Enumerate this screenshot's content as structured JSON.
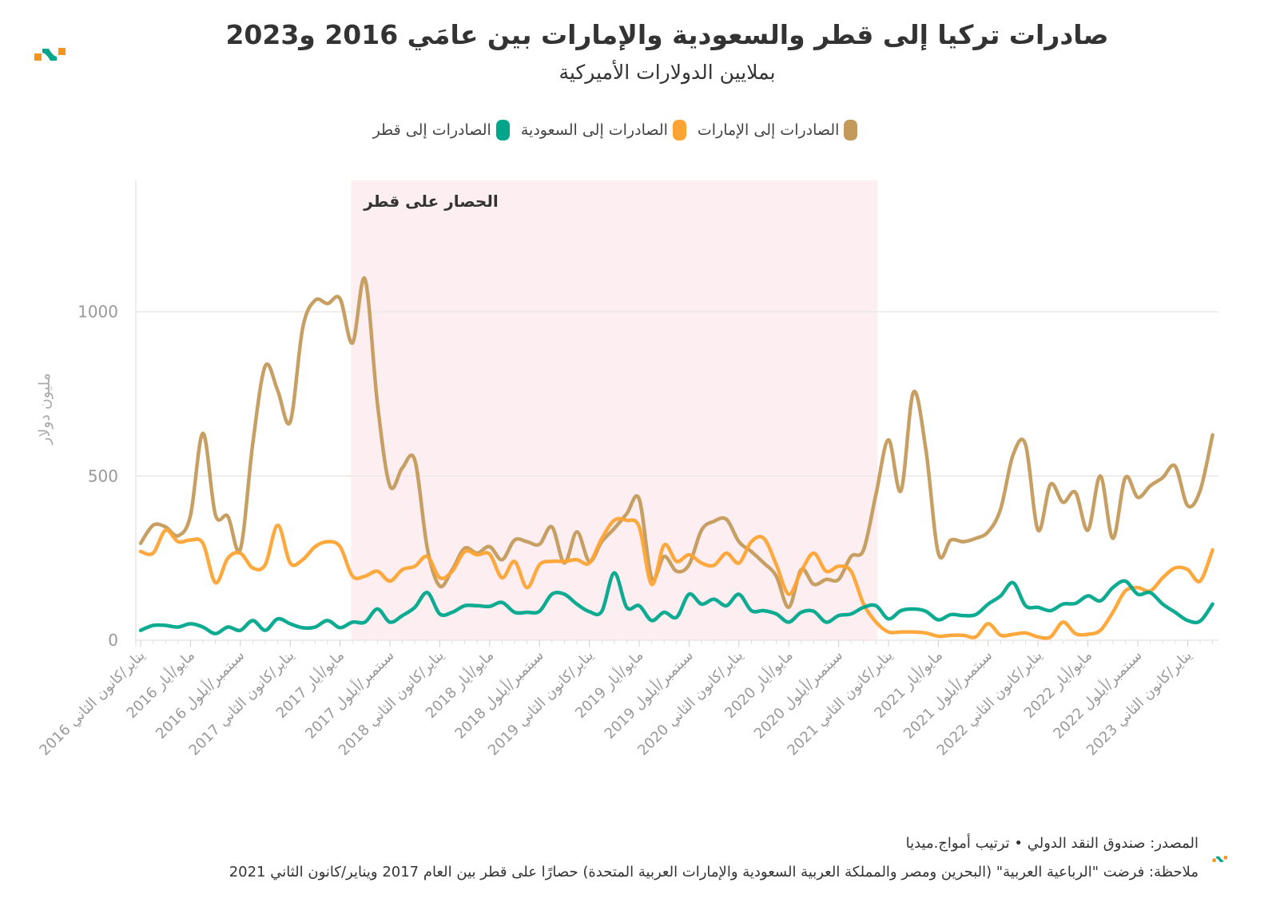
{
  "header": {
    "title": "صادرات تركيا إلى قطر والسعودية والإمارات بين عامَي 2016 و2023",
    "subtitle": "بملايين الدولارات الأميركية"
  },
  "footer": {
    "source": "المصدر: صندوق النقد الدولي • ترتيب أمواج.ميديا",
    "note": "ملاحظة: فرضت \"الرباعية العربية\" (البحرين ومصر والمملكة العربية السعودية والإمارات العربية المتحدة) حصارًا على قطر بين العام 2017 ويناير/كانون الثاني 2021"
  },
  "chart_data": {
    "type": "line",
    "title": "صادرات تركيا إلى قطر والسعودية والإمارات بين عامَي 2016 و2023",
    "subtitle": "بملايين الدولارات الأميركية",
    "xlabel": "",
    "ylabel": "مليون دولار",
    "ylim": [
      0,
      1400
    ],
    "yticks": [
      0,
      500,
      1000
    ],
    "grid": true,
    "legend_position": "top-center",
    "x_start": "2016-01",
    "x_frequency": "monthly",
    "x_tick_every": 4,
    "x_tick_labels": [
      "يناير/كانون الثاني 2016",
      "مايو/أيار 2016",
      "سبتمبر/أيلول 2016",
      "يناير/كانون الثاني 2017",
      "مايو/أيار 2017",
      "سبتمبر/أيلول 2017",
      "يناير/كانون الثاني 2018",
      "مايو/أيار 2018",
      "سبتمبر/أيلول 2018",
      "يناير/كانون الثاني 2019",
      "مايو/أيار 2019",
      "سبتمبر/أيلول 2019",
      "يناير/كانون الثاني 2020",
      "مايو/أيار 2020",
      "سبتمبر/أيلول 2020",
      "يناير/كانون الثاني 2021",
      "مايو/أيار 2021",
      "سبتمبر/أيلول 2021",
      "يناير/كانون الثاني 2022",
      "مايو/أيار 2022",
      "سبتمبر/أيلول 2022",
      "يناير/كانون الثاني 2023"
    ],
    "annotation": {
      "label": "الحصار على قطر",
      "start_index": 17,
      "end_index": 59,
      "color": "#fdeef2"
    },
    "series": [
      {
        "name": "الصادرات إلى الإمارات",
        "color": "#c49a5a",
        "values": [
          295,
          350,
          345,
          318,
          380,
          630,
          382,
          377,
          277,
          600,
          835,
          760,
          665,
          950,
          1035,
          1025,
          1040,
          905,
          1100,
          720,
          470,
          525,
          548,
          280,
          165,
          215,
          280,
          265,
          285,
          245,
          305,
          300,
          292,
          345,
          235,
          330,
          240,
          300,
          340,
          385,
          430,
          190,
          255,
          210,
          230,
          335,
          362,
          368,
          300,
          270,
          235,
          195,
          100,
          215,
          170,
          185,
          185,
          255,
          275,
          445,
          610,
          455,
          755,
          580,
          265,
          305,
          300,
          310,
          330,
          400,
          565,
          595,
          335,
          475,
          420,
          450,
          335,
          500,
          310,
          495,
          435,
          470,
          495,
          530,
          410,
          455,
          625
        ]
      },
      {
        "name": "الصادرات إلى السعودية",
        "color": "#ffa333",
        "values": [
          270,
          265,
          335,
          300,
          305,
          295,
          175,
          250,
          265,
          220,
          230,
          350,
          235,
          245,
          285,
          300,
          285,
          195,
          195,
          210,
          180,
          215,
          225,
          255,
          190,
          210,
          270,
          260,
          262,
          190,
          240,
          160,
          230,
          240,
          240,
          245,
          235,
          310,
          365,
          365,
          345,
          170,
          290,
          240,
          260,
          235,
          228,
          265,
          235,
          300,
          310,
          230,
          140,
          210,
          265,
          210,
          225,
          210,
          110,
          55,
          25,
          25,
          25,
          22,
          12,
          15,
          15,
          10,
          50,
          15,
          18,
          22,
          10,
          10,
          55,
          20,
          18,
          30,
          85,
          150,
          160,
          150,
          190,
          220,
          215,
          180,
          275
        ]
      },
      {
        "name": "الصادرات إلى قطر",
        "color": "#00a68c",
        "values": [
          30,
          45,
          45,
          40,
          50,
          40,
          20,
          40,
          30,
          60,
          30,
          65,
          50,
          38,
          40,
          60,
          38,
          55,
          55,
          95,
          55,
          75,
          100,
          145,
          80,
          85,
          105,
          105,
          103,
          115,
          85,
          85,
          88,
          140,
          140,
          110,
          87,
          88,
          205,
          100,
          105,
          60,
          85,
          70,
          140,
          110,
          125,
          105,
          140,
          90,
          90,
          80,
          55,
          85,
          88,
          55,
          75,
          80,
          100,
          105,
          65,
          90,
          95,
          88,
          62,
          78,
          75,
          78,
          110,
          135,
          175,
          105,
          100,
          90,
          110,
          112,
          135,
          120,
          160,
          180,
          140,
          145,
          110,
          85,
          60,
          58,
          110
        ]
      }
    ]
  }
}
